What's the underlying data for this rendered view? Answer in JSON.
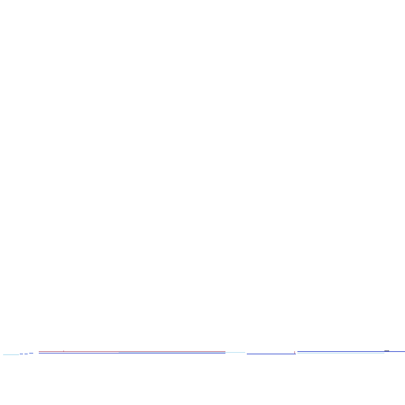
{
  "colors": {
    "background": "#ffffff",
    "red_line": "#b0506a",
    "blue_line": "#3a4fd0",
    "cyan_line": "#7ec8e8",
    "dark_mark": "#2a2a40",
    "dash": "#4a6ad8"
  }
}
